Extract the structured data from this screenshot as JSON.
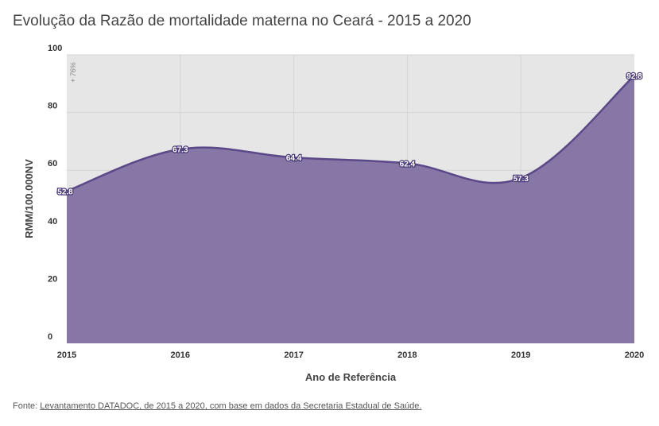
{
  "title": "Evolução da Razão de mortalidade materna no Ceará - 2015 a 2020",
  "footer": {
    "prefix": "Fonte: ",
    "link_text": "Levantamento DATADOC, de 2015 a 2020, com base em dados da Secretaria Estadual de Saúde."
  },
  "chart_data": {
    "type": "area",
    "x": [
      "2015",
      "2016",
      "2017",
      "2018",
      "2019",
      "2020"
    ],
    "series": [
      {
        "values": [
          52.8,
          67.3,
          64.4,
          62.4,
          57.3,
          92.8
        ]
      }
    ],
    "data_labels": [
      "52.8",
      "67.3",
      "64.4",
      "62.4",
      "57.3",
      "92.8"
    ],
    "xlabel": "Ano de Referência",
    "ylabel": "RMM/100.000NV",
    "ylim": [
      0,
      100
    ],
    "yticks": [
      "0",
      "20",
      "40",
      "60",
      "80",
      "100"
    ],
    "annotation": "+ 76%",
    "grid": true,
    "colors": {
      "fill": "#8777a6",
      "line": "#5b4888",
      "plot_bg": "#e6e6e6",
      "grid": "#d4d4d4"
    }
  }
}
